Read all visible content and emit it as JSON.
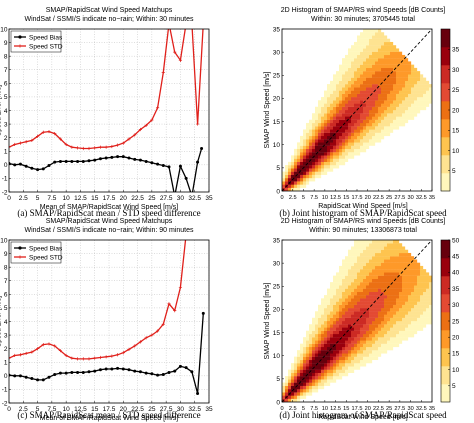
{
  "panels": [
    {
      "id": "a",
      "caption": "(a)  SMAP/RapidScat mean / STD speed difference",
      "title_lines": [
        "SMAP/RapidScat Wind Speed Matchups",
        "WindSat / SSMI/S indicate no−rain; Within: 30 minutes"
      ],
      "xlabel": "Mean of SMAP/RapidScat Wind Speed [m/s]",
      "ylabel": "Speed Error [m/s]",
      "legend": [
        "Speed Bias",
        "Speed STD"
      ]
    },
    {
      "id": "b",
      "caption": "(b)  Joint histogram of SMAP/RapidScat speed",
      "title_lines": [
        "2D Histogram of SMAP/RS wind Speeds [dB Counts]",
        "Within: 30 minutes; 3705445 total"
      ],
      "xlabel": "RapidScat Wind Speed [m/s]",
      "ylabel": "SMAP Wind Speed [m/s]"
    },
    {
      "id": "c",
      "caption": "(c)  SMAP/RapidScat mean / STD speed difference",
      "title_lines": [
        "SMAP/RapidScat Wind Speed Matchups",
        "WindSat / SSMI/S indicate no−rain; Within: 90 minutes"
      ],
      "xlabel": "Mean of SMAP/RapidScat Wind Speed [m/s]",
      "ylabel": "Speed Error [m/s]",
      "legend": [
        "Speed Bias",
        "Speed STD"
      ]
    },
    {
      "id": "d",
      "caption": "(d)  Joint histogram of SMAP/RapidScat speed",
      "title_lines": [
        "2D Histogram of SMAP/RS wind Speeds [dB Counts]",
        "Within: 90 minutes; 13306873 total"
      ],
      "xlabel": "RapidScat Wind Speed [m/s]",
      "ylabel": "SMAP Wind Speed [m/s]"
    }
  ],
  "colors": {
    "bias": "#000000",
    "std": "#e0201b",
    "diag": "#000000"
  },
  "chart_data": [
    {
      "type": "line",
      "panel": "a",
      "xlim": [
        0,
        35
      ],
      "ylim": [
        -2,
        10
      ],
      "xticks": [
        0,
        2.5,
        5,
        7.5,
        10,
        12.5,
        15,
        17.5,
        20,
        22.5,
        25,
        27.5,
        30,
        32.5,
        35
      ],
      "yticks": [
        -2,
        -1,
        0,
        1,
        2,
        3,
        4,
        5,
        6,
        7,
        8,
        9,
        10
      ],
      "grid": true,
      "legend_position": "top-left",
      "series": [
        {
          "name": "Speed Bias",
          "marker": "circle",
          "x": [
            0,
            1,
            2,
            3,
            4,
            5,
            6,
            7,
            8,
            9,
            10,
            11,
            12,
            13,
            14,
            15,
            16,
            17,
            18,
            19,
            20,
            21,
            22,
            23,
            24,
            25,
            26,
            27,
            28,
            29,
            30,
            31,
            32,
            33,
            33.7
          ],
          "y": [
            0.1,
            0,
            0.05,
            -0.1,
            -0.25,
            -0.35,
            -0.3,
            -0.05,
            0.2,
            0.25,
            0.25,
            0.25,
            0.25,
            0.25,
            0.3,
            0.35,
            0.45,
            0.5,
            0.55,
            0.6,
            0.6,
            0.5,
            0.4,
            0.35,
            0.25,
            0.15,
            0.05,
            -0.05,
            -0.15,
            -2.3,
            -0.1,
            -1,
            -2.3,
            0.2,
            1.2
          ]
        },
        {
          "name": "Speed STD",
          "marker": "plus",
          "x": [
            0,
            1,
            2,
            3,
            4,
            5,
            6,
            7,
            8,
            9,
            10,
            11,
            12,
            13,
            14,
            15,
            16,
            17,
            18,
            19,
            20,
            21,
            22,
            23,
            24,
            25,
            26,
            27,
            28,
            29,
            30,
            31,
            32,
            33,
            34
          ],
          "y": [
            1.3,
            1.5,
            1.6,
            1.7,
            1.8,
            2.1,
            2.4,
            2.45,
            2.3,
            1.9,
            1.5,
            1.3,
            1.25,
            1.2,
            1.2,
            1.25,
            1.3,
            1.3,
            1.35,
            1.45,
            1.6,
            1.9,
            2.2,
            2.6,
            2.9,
            3.3,
            4.2,
            6.8,
            10.4,
            8.3,
            7.7,
            10.4,
            10.4,
            3,
            10.4
          ]
        }
      ]
    },
    {
      "type": "heatmap",
      "panel": "b",
      "xlim": [
        0,
        35
      ],
      "ylim": [
        0,
        35
      ],
      "xticks": [
        0,
        2.5,
        5,
        7.5,
        10,
        12.5,
        15,
        17.5,
        20,
        22.5,
        25,
        27.5,
        30,
        32.5,
        35
      ],
      "yticks": [
        0,
        5,
        10,
        15,
        20,
        25,
        30,
        35
      ],
      "colorbar_ticks": [
        5,
        10,
        15,
        20,
        25,
        30,
        35
      ],
      "colorbar_range": [
        0,
        40
      ],
      "diagonal": "dashed y = x",
      "colormap": [
        "#fff7bc",
        "#fee391",
        "#fec44f",
        "#fe9929",
        "#ec7014",
        "#e34a33",
        "#cc2a24",
        "#99000d",
        "#67000d"
      ],
      "spread": 0.24,
      "extent": 29
    },
    {
      "type": "line",
      "panel": "c",
      "xlim": [
        0,
        35
      ],
      "ylim": [
        -2,
        10
      ],
      "xticks": [
        0,
        2.5,
        5,
        7.5,
        10,
        12.5,
        15,
        17.5,
        20,
        22.5,
        25,
        27.5,
        30,
        32.5,
        35
      ],
      "yticks": [
        -2,
        -1,
        0,
        1,
        2,
        3,
        4,
        5,
        6,
        7,
        8,
        9,
        10
      ],
      "grid": true,
      "legend_position": "top-left",
      "series": [
        {
          "name": "Speed Bias",
          "marker": "circle",
          "x": [
            0,
            1,
            2,
            3,
            4,
            5,
            6,
            7,
            8,
            9,
            10,
            11,
            12,
            13,
            14,
            15,
            16,
            17,
            18,
            19,
            20,
            21,
            22,
            23,
            24,
            25,
            26,
            27,
            28,
            29,
            30,
            31,
            32,
            33,
            34
          ],
          "y": [
            0.05,
            0,
            0,
            -0.1,
            -0.2,
            -0.3,
            -0.3,
            -0.1,
            0.1,
            0.2,
            0.2,
            0.25,
            0.25,
            0.25,
            0.3,
            0.35,
            0.45,
            0.5,
            0.5,
            0.55,
            0.5,
            0.45,
            0.35,
            0.3,
            0.2,
            0.15,
            0.05,
            0.1,
            0.25,
            0.35,
            0.7,
            0.6,
            0.3,
            -1.3,
            4.6
          ]
        },
        {
          "name": "Speed STD",
          "marker": "plus",
          "x": [
            0,
            1,
            2,
            3,
            4,
            5,
            6,
            7,
            8,
            9,
            10,
            11,
            12,
            13,
            14,
            15,
            16,
            17,
            18,
            19,
            20,
            21,
            22,
            23,
            24,
            25,
            26,
            27,
            28,
            29,
            30,
            31
          ],
          "y": [
            1.3,
            1.5,
            1.55,
            1.65,
            1.75,
            2.0,
            2.3,
            2.35,
            2.2,
            1.85,
            1.5,
            1.3,
            1.25,
            1.25,
            1.25,
            1.3,
            1.35,
            1.4,
            1.45,
            1.55,
            1.7,
            1.95,
            2.2,
            2.5,
            2.8,
            3.0,
            3.3,
            3.8,
            5.3,
            4.8,
            6.5,
            10.4
          ]
        }
      ]
    },
    {
      "type": "heatmap",
      "panel": "d",
      "xlim": [
        0,
        35
      ],
      "ylim": [
        0,
        35
      ],
      "xticks": [
        0,
        2.5,
        5,
        7.5,
        10,
        12.5,
        15,
        17.5,
        20,
        22.5,
        25,
        27.5,
        30,
        32.5,
        35
      ],
      "yticks": [
        0,
        5,
        10,
        15,
        20,
        25,
        30,
        35
      ],
      "colorbar_ticks": [
        5,
        10,
        15,
        20,
        25,
        30,
        35,
        40,
        45,
        50
      ],
      "colorbar_range": [
        0,
        50
      ],
      "diagonal": "dashed y = x",
      "colormap": [
        "#fff7bc",
        "#fee391",
        "#fec44f",
        "#fe9929",
        "#ec7014",
        "#e34a33",
        "#cc2a24",
        "#99000d",
        "#67000d"
      ],
      "spread": 0.27,
      "extent": 31
    }
  ]
}
